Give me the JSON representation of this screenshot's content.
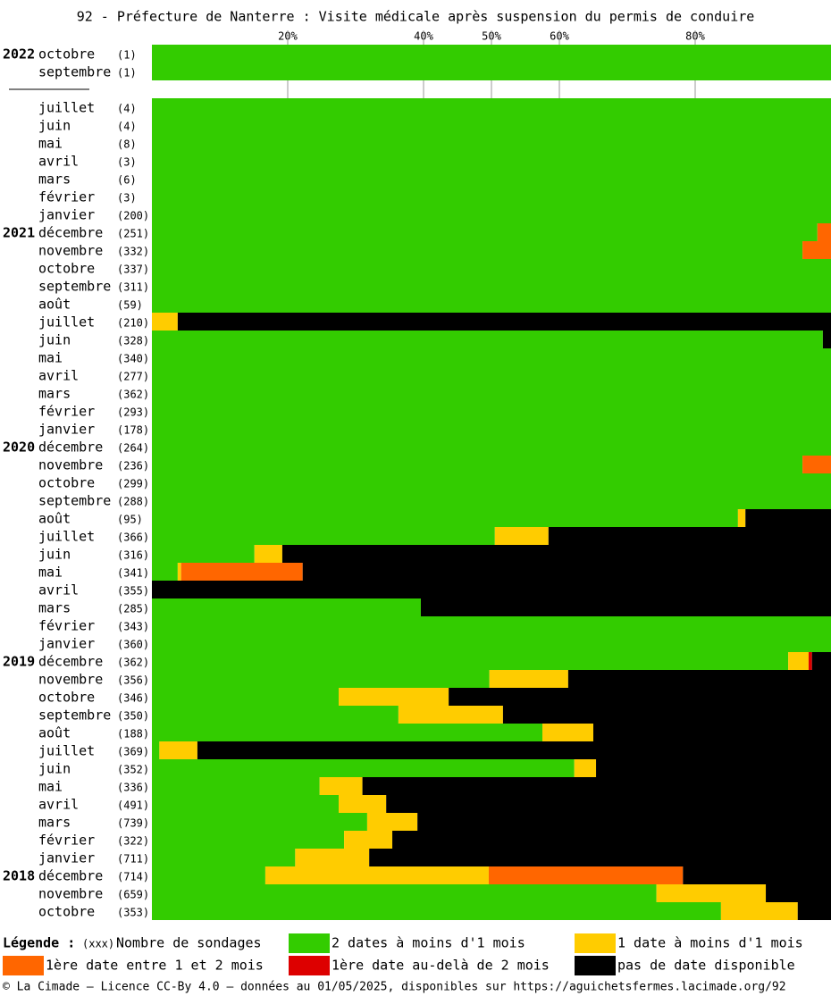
{
  "chart_data": {
    "type": "stacked-barh",
    "title": "92 - Préfecture de Nanterre : Visite médicale après suspension du permis de conduire",
    "xlim": [
      0,
      100
    ],
    "xticks": [
      {
        "value": 20,
        "label": "20%"
      },
      {
        "value": 40,
        "label": "40%"
      },
      {
        "value": 50,
        "label": "50%"
      },
      {
        "value": 60,
        "label": "60%"
      },
      {
        "value": 80,
        "label": "80%"
      }
    ],
    "grid": true,
    "years": [
      "2022",
      null,
      null,
      null,
      null,
      null,
      null,
      null,
      null,
      "2021",
      null,
      null,
      null,
      null,
      null,
      null,
      null,
      null,
      null,
      null,
      null,
      "2020",
      null,
      null,
      null,
      null,
      null,
      null,
      null,
      null,
      null,
      null,
      null,
      "2019",
      null,
      null,
      null,
      null,
      null,
      null,
      null,
      null,
      null,
      null,
      null,
      "2018",
      null,
      null
    ],
    "categories": [
      "octobre",
      "septembre",
      "juillet",
      "juin",
      "mai",
      "avril",
      "mars",
      "février",
      "janvier",
      "décembre",
      "novembre",
      "octobre",
      "septembre",
      "août",
      "juillet",
      "juin",
      "mai",
      "avril",
      "mars",
      "février",
      "janvier",
      "décembre",
      "novembre",
      "octobre",
      "septembre",
      "août",
      "juillet",
      "juin",
      "mai",
      "avril",
      "mars",
      "février",
      "janvier",
      "décembre",
      "novembre",
      "octobre",
      "septembre",
      "août",
      "juillet",
      "juin",
      "mai",
      "avril",
      "mars",
      "février",
      "janvier",
      "décembre",
      "novembre",
      "octobre"
    ],
    "counts": [
      "(1)",
      "(1)",
      "(4)",
      "(4)",
      "(8)",
      "(3)",
      "(6)",
      "(3)",
      "(200)",
      "(251)",
      "(332)",
      "(337)",
      "(311)",
      "(59)",
      "(210)",
      "(328)",
      "(340)",
      "(277)",
      "(362)",
      "(293)",
      "(178)",
      "(264)",
      "(236)",
      "(299)",
      "(288)",
      "(95)",
      "(366)",
      "(316)",
      "(341)",
      "(355)",
      "(285)",
      "(343)",
      "(360)",
      "(362)",
      "(356)",
      "(346)",
      "(350)",
      "(188)",
      "(369)",
      "(352)",
      "(336)",
      "(491)",
      "(739)",
      "(322)",
      "(711)",
      "(714)",
      "(659)",
      "(353)"
    ],
    "series": [
      {
        "name": "2 dates à moins d'1 mois",
        "color": "#33cc00",
        "values": [
          100,
          100,
          100,
          100,
          100,
          100,
          100,
          100,
          100,
          98.0,
          95.8,
          100,
          100,
          100,
          0,
          98.8,
          100,
          100,
          100,
          100,
          100,
          100,
          95.8,
          100,
          100,
          86.3,
          50.5,
          15.1,
          3.8,
          0,
          39.6,
          100,
          100,
          93.7,
          49.7,
          27.5,
          36.3,
          57.5,
          1.1,
          62.2,
          24.7,
          27.5,
          31.7,
          28.3,
          21.1,
          16.7,
          74.3,
          83.8
        ]
      },
      {
        "name": "1 date à moins d'1 mois",
        "color": "#ffcc00",
        "values": [
          0,
          0,
          0,
          0,
          0,
          0,
          0,
          0,
          0,
          0,
          0,
          0,
          0,
          0,
          3.8,
          0,
          0,
          0,
          0,
          0,
          0,
          0,
          0,
          0,
          0,
          1.1,
          7.9,
          4.1,
          0.5,
          0,
          0,
          0,
          0,
          3.0,
          11.6,
          16.2,
          15.4,
          7.5,
          5.6,
          3.2,
          6.3,
          7.0,
          7.4,
          7.1,
          10.9,
          32.9,
          16.1,
          11.3
        ]
      },
      {
        "name": "1ère date entre 1 et 2 mois",
        "color": "#ff6600",
        "values": [
          0,
          0,
          0,
          0,
          0,
          0,
          0,
          0,
          0,
          2.0,
          4.2,
          0,
          0,
          0,
          0,
          0,
          0,
          0,
          0,
          0,
          0,
          0,
          4.2,
          0,
          0,
          0,
          0,
          0,
          17.9,
          0,
          0,
          0,
          0,
          0,
          0,
          0,
          0,
          0,
          0,
          0,
          0,
          0,
          0,
          0,
          0,
          28.6,
          0,
          0
        ]
      },
      {
        "name": "1ère date au-delà de 2 mois",
        "color": "#dd0000",
        "values": [
          0,
          0,
          0,
          0,
          0,
          0,
          0,
          0,
          0,
          0,
          0,
          0,
          0,
          0,
          0,
          0,
          0,
          0,
          0,
          0,
          0,
          0,
          0,
          0,
          0,
          0,
          0,
          0,
          0,
          0,
          0,
          0,
          0,
          0.5,
          0,
          0,
          0,
          0,
          0,
          0,
          0,
          0,
          0,
          0,
          0,
          0,
          0,
          0
        ]
      },
      {
        "name": "pas de date disponible",
        "color": "#000000",
        "values": [
          0,
          0,
          0,
          0,
          0,
          0,
          0,
          0,
          0,
          0,
          0,
          0,
          0,
          0,
          96.2,
          1.2,
          0,
          0,
          0,
          0,
          0,
          0,
          0,
          0,
          0,
          12.6,
          41.6,
          80.8,
          77.8,
          100,
          60.4,
          0,
          0,
          2.8,
          38.7,
          56.3,
          48.3,
          35.0,
          93.3,
          34.6,
          69.0,
          65.5,
          60.9,
          64.6,
          68.0,
          21.8,
          9.6,
          4.9
        ]
      }
    ],
    "legend_title": "Légende :",
    "legend_count_sample": "(xxx)",
    "legend_count_text": "Nombre de sondages",
    "footer": "© La Cimade — Licence CC-By 4.0 — données au 01/05/2025, disponibles sur https://aguichetsfermes.lacimade.org/92"
  }
}
